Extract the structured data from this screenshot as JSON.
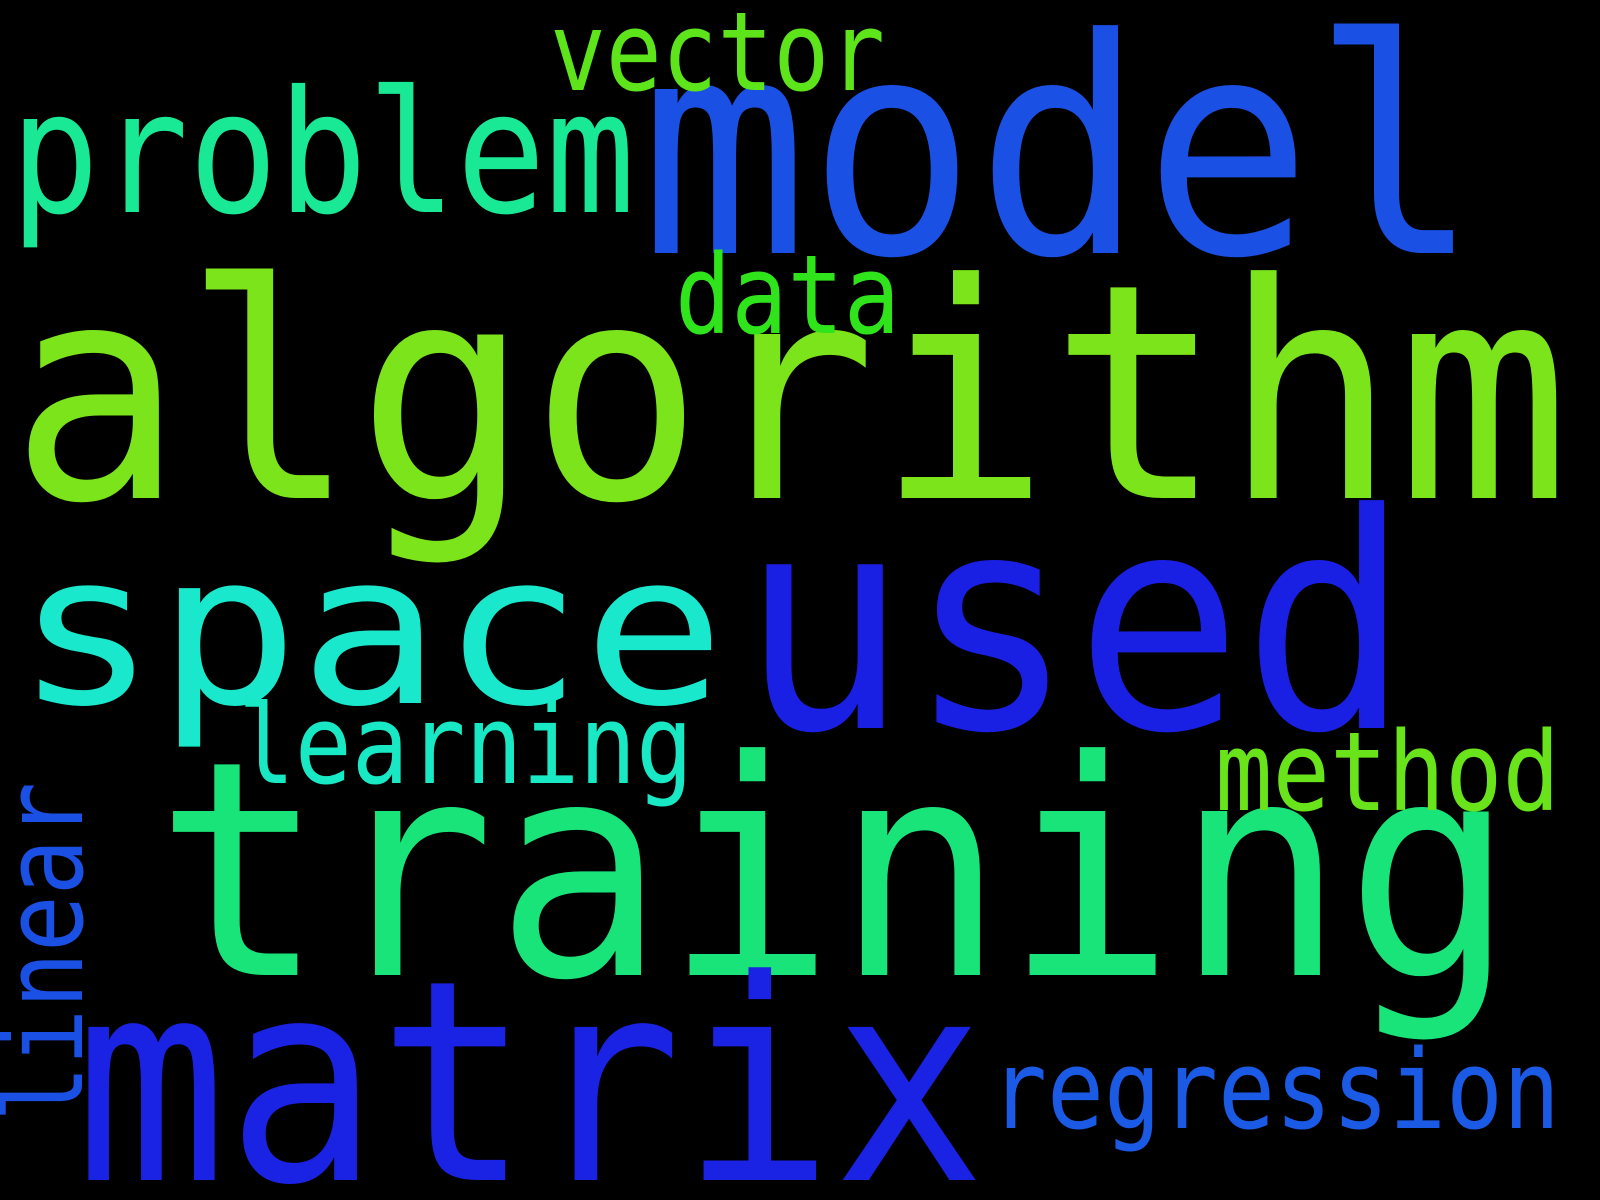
{
  "background_color": "#000000",
  "words": [
    {
      "id": "algorithm",
      "text": "algorithm",
      "color": "#7be41a"
    },
    {
      "id": "model",
      "text": "model",
      "color": "#1a50e4"
    },
    {
      "id": "training",
      "text": "training",
      "color": "#19e47a"
    },
    {
      "id": "used",
      "text": "used",
      "color": "#1a1fe4"
    },
    {
      "id": "space",
      "text": "space",
      "color": "#19e8cd"
    },
    {
      "id": "matrix",
      "text": "matrix",
      "color": "#1a22e4"
    },
    {
      "id": "problem",
      "text": "problem",
      "color": "#19e895"
    },
    {
      "id": "vector",
      "text": "vector",
      "color": "#5ee41a"
    },
    {
      "id": "data",
      "text": "data",
      "color": "#2fe41a"
    },
    {
      "id": "learning",
      "text": "learning",
      "color": "#19e8c4"
    },
    {
      "id": "method",
      "text": "method",
      "color": "#6ae41a"
    },
    {
      "id": "regression",
      "text": "regression",
      "color": "#1a5ae4"
    },
    {
      "id": "linear",
      "text": "linear",
      "color": "#1a50e4"
    }
  ]
}
